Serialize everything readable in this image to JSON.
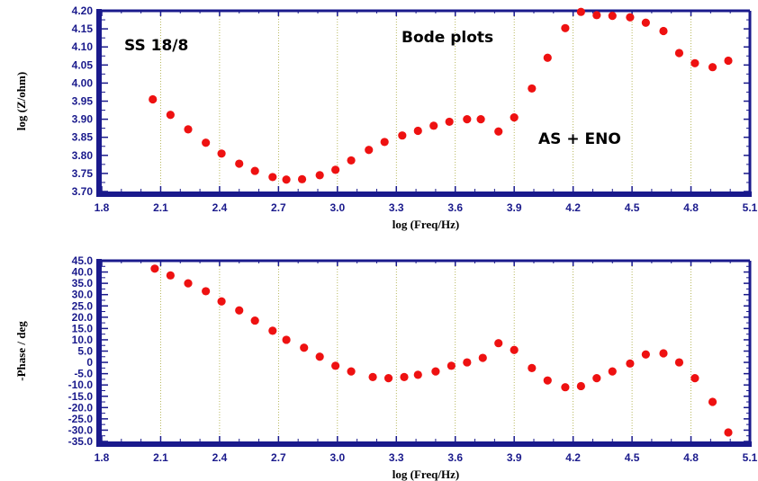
{
  "chart_data": [
    {
      "type": "scatter",
      "xlabel": "log (Freq/Hz)",
      "ylabel": "log (Z/ohm)",
      "xlim": [
        1.8,
        5.1
      ],
      "ylim": [
        3.7,
        4.2
      ],
      "x_ticks": [
        "1.8",
        "2.1",
        "2.4",
        "2.7",
        "3.0",
        "3.3",
        "3.6",
        "3.9",
        "4.2",
        "4.5",
        "4.8",
        "5.1"
      ],
      "y_ticks": [
        "3.70",
        "3.75",
        "3.80",
        "3.85",
        "3.90",
        "3.95",
        "4.00",
        "4.05",
        "4.10",
        "4.15",
        "4.20"
      ],
      "grid": "vertical dotted",
      "marker_color": "#ee1111",
      "annotations": [
        "SS 18/8",
        "Bode plots",
        "AS + ENO"
      ],
      "points": [
        {
          "x": 2.06,
          "y": 3.955
        },
        {
          "x": 2.15,
          "y": 3.912
        },
        {
          "x": 2.24,
          "y": 3.872
        },
        {
          "x": 2.33,
          "y": 3.835
        },
        {
          "x": 2.41,
          "y": 3.805
        },
        {
          "x": 2.5,
          "y": 3.777
        },
        {
          "x": 2.58,
          "y": 3.757
        },
        {
          "x": 2.67,
          "y": 3.74
        },
        {
          "x": 2.74,
          "y": 3.733
        },
        {
          "x": 2.82,
          "y": 3.734
        },
        {
          "x": 2.91,
          "y": 3.745
        },
        {
          "x": 2.99,
          "y": 3.76
        },
        {
          "x": 3.07,
          "y": 3.786
        },
        {
          "x": 3.16,
          "y": 3.815
        },
        {
          "x": 3.24,
          "y": 3.837
        },
        {
          "x": 3.33,
          "y": 3.855
        },
        {
          "x": 3.41,
          "y": 3.868
        },
        {
          "x": 3.49,
          "y": 3.882
        },
        {
          "x": 3.57,
          "y": 3.893
        },
        {
          "x": 3.66,
          "y": 3.9
        },
        {
          "x": 3.73,
          "y": 3.9
        },
        {
          "x": 3.82,
          "y": 3.866
        },
        {
          "x": 3.9,
          "y": 3.905
        },
        {
          "x": 3.99,
          "y": 3.985
        },
        {
          "x": 4.07,
          "y": 4.07
        },
        {
          "x": 4.16,
          "y": 4.152
        },
        {
          "x": 4.24,
          "y": 4.197
        },
        {
          "x": 4.32,
          "y": 4.188
        },
        {
          "x": 4.4,
          "y": 4.186
        },
        {
          "x": 4.49,
          "y": 4.182
        },
        {
          "x": 4.57,
          "y": 4.167
        },
        {
          "x": 4.66,
          "y": 4.144
        },
        {
          "x": 4.74,
          "y": 4.083
        },
        {
          "x": 4.82,
          "y": 4.055
        },
        {
          "x": 4.91,
          "y": 4.044
        },
        {
          "x": 4.99,
          "y": 4.062
        }
      ]
    },
    {
      "type": "scatter",
      "xlabel": "log (Freq/Hz)",
      "ylabel": "-Phase / deg",
      "xlim": [
        1.8,
        5.1
      ],
      "ylim": [
        -35,
        45
      ],
      "x_ticks": [
        "1.8",
        "2.1",
        "2.4",
        "2.7",
        "3.0",
        "3.3",
        "3.6",
        "3.9",
        "4.2",
        "4.5",
        "4.8",
        "5.1"
      ],
      "y_ticks": [
        "-35.0",
        "-30.0",
        "-25.0",
        "-20.0",
        "-15.0",
        "-10.0",
        "-5.0",
        "0",
        "5.0",
        "10.0",
        "15.0",
        "20.0",
        "25.0",
        "30.0",
        "35.0",
        "40.0",
        "45.0"
      ],
      "grid": "vertical dotted",
      "marker_color": "#ee1111",
      "points": [
        {
          "x": 2.07,
          "y": 41.5
        },
        {
          "x": 2.15,
          "y": 38.5
        },
        {
          "x": 2.24,
          "y": 35.0
        },
        {
          "x": 2.33,
          "y": 31.5
        },
        {
          "x": 2.41,
          "y": 27.0
        },
        {
          "x": 2.5,
          "y": 23.0
        },
        {
          "x": 2.58,
          "y": 18.5
        },
        {
          "x": 2.67,
          "y": 14.0
        },
        {
          "x": 2.74,
          "y": 10.0
        },
        {
          "x": 2.83,
          "y": 6.5
        },
        {
          "x": 2.91,
          "y": 2.5
        },
        {
          "x": 2.99,
          "y": -1.5
        },
        {
          "x": 3.07,
          "y": -4.0
        },
        {
          "x": 3.18,
          "y": -6.5
        },
        {
          "x": 3.26,
          "y": -7.0
        },
        {
          "x": 3.34,
          "y": -6.5
        },
        {
          "x": 3.41,
          "y": -5.5
        },
        {
          "x": 3.5,
          "y": -4.0
        },
        {
          "x": 3.58,
          "y": -1.5
        },
        {
          "x": 3.66,
          "y": 0.0
        },
        {
          "x": 3.74,
          "y": 2.0
        },
        {
          "x": 3.82,
          "y": 8.5
        },
        {
          "x": 3.9,
          "y": 5.5
        },
        {
          "x": 3.99,
          "y": -2.5
        },
        {
          "x": 4.07,
          "y": -8.0
        },
        {
          "x": 4.16,
          "y": -11.0
        },
        {
          "x": 4.24,
          "y": -10.5
        },
        {
          "x": 4.32,
          "y": -7.0
        },
        {
          "x": 4.4,
          "y": -4.0
        },
        {
          "x": 4.49,
          "y": -0.5
        },
        {
          "x": 4.57,
          "y": 3.5
        },
        {
          "x": 4.66,
          "y": 4.0
        },
        {
          "x": 4.74,
          "y": 0.0
        },
        {
          "x": 4.82,
          "y": -7.0
        },
        {
          "x": 4.91,
          "y": -17.5
        },
        {
          "x": 4.99,
          "y": -31.0
        }
      ]
    }
  ]
}
